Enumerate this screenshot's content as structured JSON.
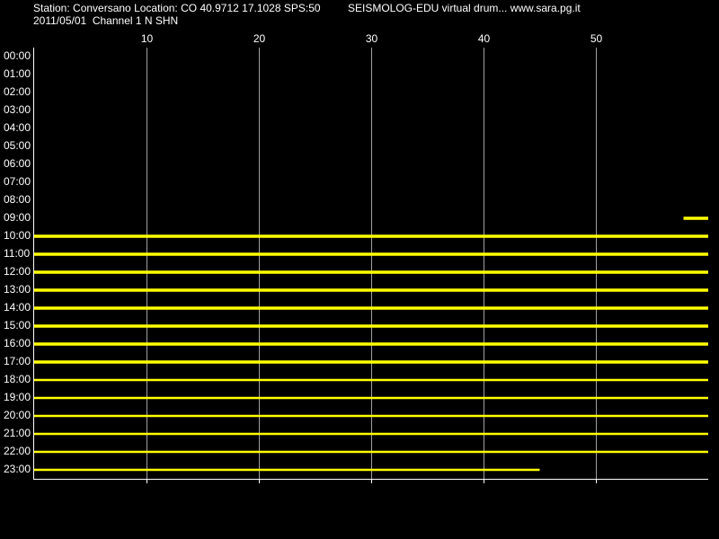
{
  "chart_data": {
    "type": "helicorder",
    "title": "Station: Conversano Location: CO 40.9712 17.1028 SPS:50",
    "subtitle": "2011/05/01  Channel 1 N SHN",
    "annotation": "SEISMOLOG-EDU virtual drum... www.sara.pg.it",
    "categories": [
      "00:00",
      "01:00",
      "02:00",
      "03:00",
      "04:00",
      "05:00",
      "06:00",
      "07:00",
      "08:00",
      "09:00",
      "10:00",
      "11:00",
      "12:00",
      "13:00",
      "14:00",
      "15:00",
      "16:00",
      "17:00",
      "18:00",
      "19:00",
      "20:00",
      "21:00",
      "22:00",
      "23:00"
    ],
    "xlim": [
      0,
      60
    ],
    "xticks": [
      10,
      20,
      30,
      40,
      50
    ],
    "grid": true,
    "color": "#ffff00",
    "traces": [
      null,
      null,
      null,
      null,
      null,
      null,
      null,
      null,
      null,
      {
        "start": 57.8,
        "end": 60
      },
      {
        "start": 0,
        "end": 60
      },
      {
        "start": 0,
        "end": 60
      },
      {
        "start": 0,
        "end": 60
      },
      {
        "start": 0,
        "end": 60
      },
      {
        "start": 0,
        "end": 60
      },
      {
        "start": 0,
        "end": 60
      },
      {
        "start": 0,
        "end": 60
      },
      {
        "start": 0,
        "end": 60
      },
      {
        "start": 0,
        "end": 60
      },
      {
        "start": 0,
        "end": 60
      },
      {
        "start": 0,
        "end": 60
      },
      {
        "start": 0,
        "end": 60
      },
      {
        "start": 0,
        "end": 60
      },
      {
        "start": 0,
        "end": 45
      }
    ]
  }
}
